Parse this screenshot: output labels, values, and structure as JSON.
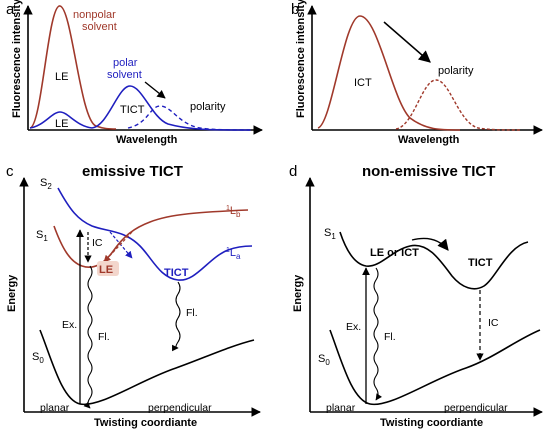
{
  "panels": {
    "a": {
      "letter": "a",
      "ylabel": "Fluorescence intensity",
      "xlabel": "Wavelength",
      "nonpolar_label_1": "nonpolar",
      "nonpolar_label_2": "solvent",
      "polar_label_1": "polar",
      "polar_label_2": "solvent",
      "le_upper": "LE",
      "le_lower": "LE",
      "tict": "TICT",
      "polarity": "polarity"
    },
    "b": {
      "letter": "b",
      "ylabel": "Fluorescence intensity",
      "xlabel": "Wavelength",
      "ict": "ICT",
      "polarity": "polarity"
    },
    "c": {
      "letter": "c",
      "title": "emissive TICT",
      "ylabel": "Energy",
      "xlabel": "Twisting coordiante",
      "s2": "S",
      "s2_sub": "2",
      "s1": "S",
      "s1_sub": "1",
      "s0": "S",
      "s0_sub": "0",
      "lb": "L",
      "lb_sup": "1",
      "lb_sub": "b",
      "la": "L",
      "la_sup": "1",
      "la_sub": "a",
      "ic": "IC",
      "le": "LE",
      "tict": "TICT",
      "ex": "Ex.",
      "fl1": "Fl.",
      "fl2": "Fl.",
      "planar": "planar",
      "perpendicular": "perpendicular"
    },
    "d": {
      "letter": "d",
      "title": "non-emissive TICT",
      "ylabel": "Energy",
      "xlabel": "Twisting coordiante",
      "s1": "S",
      "s1_sub": "1",
      "s0": "S",
      "s0_sub": "0",
      "le_or_ict": "LE or ICT",
      "tict": "TICT",
      "ex": "Ex.",
      "fl": "Fl.",
      "ic": "IC",
      "planar": "planar",
      "perpendicular": "perpendicular"
    }
  },
  "colors": {
    "red": "#a0392b",
    "blue": "#1f1fbf",
    "black": "#000000"
  }
}
